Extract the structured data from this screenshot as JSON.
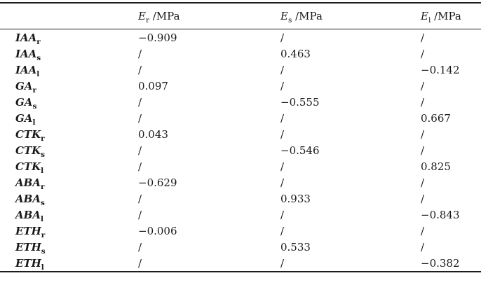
{
  "table": {
    "columns": [
      {
        "symbol": "E",
        "sub": "r",
        "unit": " /MPa"
      },
      {
        "symbol": "E",
        "sub": "s",
        "unit": " /MPa"
      },
      {
        "symbol": "E",
        "sub": "l",
        "unit": " /MPa"
      }
    ],
    "rows": [
      {
        "base": "IAA",
        "sub": "r",
        "values": [
          "−0.909",
          "/",
          "/"
        ]
      },
      {
        "base": "IAA",
        "sub": "s",
        "values": [
          "/",
          "0.463",
          "/"
        ]
      },
      {
        "base": "IAA",
        "sub": "l",
        "values": [
          "/",
          "/",
          "−0.142"
        ]
      },
      {
        "base": "GA",
        "sub": "r",
        "values": [
          "0.097",
          "/",
          "/"
        ]
      },
      {
        "base": "GA",
        "sub": "s",
        "values": [
          "/",
          "−0.555",
          "/"
        ]
      },
      {
        "base": "GA",
        "sub": "l",
        "values": [
          "/",
          "/",
          "0.667"
        ]
      },
      {
        "base": "CTK",
        "sub": "r",
        "values": [
          "0.043",
          "/",
          "/"
        ]
      },
      {
        "base": "CTK",
        "sub": "s",
        "values": [
          "/",
          "−0.546",
          "/"
        ]
      },
      {
        "base": "CTK",
        "sub": "l",
        "values": [
          "/",
          "/",
          "0.825"
        ]
      },
      {
        "base": "ABA",
        "sub": "r",
        "values": [
          "−0.629",
          "/",
          "/"
        ]
      },
      {
        "base": "ABA",
        "sub": "s",
        "values": [
          "/",
          "0.933",
          "/"
        ]
      },
      {
        "base": "ABA",
        "sub": "l",
        "values": [
          "/",
          "/",
          "−0.843"
        ]
      },
      {
        "base": "ETH",
        "sub": "r",
        "values": [
          "−0.006",
          "/",
          "/"
        ]
      },
      {
        "base": "ETH",
        "sub": "s",
        "values": [
          "/",
          "0.533",
          "/"
        ]
      },
      {
        "base": "ETH",
        "sub": "l",
        "values": [
          "/",
          "/",
          "−0.382"
        ]
      }
    ]
  },
  "colors": {
    "text": "#1a1a1a",
    "rule": "#1c1c1c",
    "background": "#ffffff"
  }
}
